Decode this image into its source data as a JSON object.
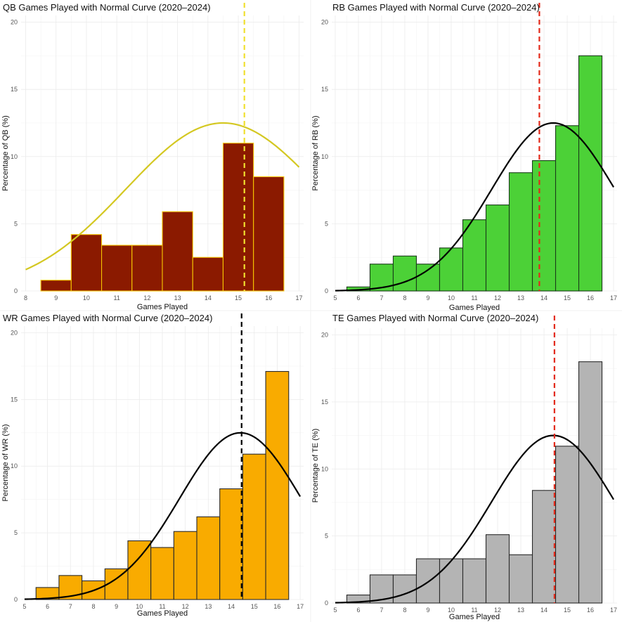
{
  "chart_data": [
    {
      "id": "qb",
      "type": "bar",
      "title": "QB Games Played with Normal Curve (2020–2024)",
      "xlabel": "Games Played",
      "ylabel": "Percentage of QB (%)",
      "x_ticks": [
        "8",
        "9",
        "10",
        "11",
        "12",
        "13",
        "14",
        "15",
        "16",
        "17"
      ],
      "y_ticks": [
        "0",
        "5",
        "10",
        "15",
        "20"
      ],
      "xlim": [
        7.85,
        17.15
      ],
      "ylim": [
        0,
        20.5
      ],
      "bins": [
        {
          "x": 9,
          "value": 0.8
        },
        {
          "x": 10,
          "value": 4.2
        },
        {
          "x": 11,
          "value": 3.4
        },
        {
          "x": 12,
          "value": 3.4
        },
        {
          "x": 13,
          "value": 5.9
        },
        {
          "x": 14,
          "value": 2.5
        },
        {
          "x": 15,
          "value": 11.0
        },
        {
          "x": 16,
          "value": 8.5
        }
      ],
      "normal_curve": {
        "mean": 14.5,
        "sd": 3.2,
        "peak": 12.5,
        "x_start": 8.0,
        "x_end": 17.0
      },
      "mean_line": 15.2,
      "colors": {
        "fill": "#8b1a00",
        "border": "#f5c400",
        "curve": "#d4c822",
        "mean_line": "#f0e030"
      }
    },
    {
      "id": "rb",
      "type": "bar",
      "title": "RB Games Played with Normal Curve (2020–2024)",
      "xlabel": "Games Played",
      "ylabel": "Percentage of RB (%)",
      "x_ticks": [
        "5",
        "6",
        "7",
        "8",
        "9",
        "10",
        "11",
        "12",
        "13",
        "14",
        "15",
        "16",
        "17"
      ],
      "y_ticks": [
        "0",
        "5",
        "10",
        "15",
        "20"
      ],
      "xlim": [
        4.85,
        17.15
      ],
      "ylim": [
        0,
        20.5
      ],
      "bins": [
        {
          "x": 6,
          "value": 0.3
        },
        {
          "x": 7,
          "value": 2.0
        },
        {
          "x": 8,
          "value": 2.6
        },
        {
          "x": 9,
          "value": 2.0
        },
        {
          "x": 10,
          "value": 3.2
        },
        {
          "x": 11,
          "value": 5.3
        },
        {
          "x": 12,
          "value": 6.4
        },
        {
          "x": 13,
          "value": 8.8
        },
        {
          "x": 14,
          "value": 9.7
        },
        {
          "x": 15,
          "value": 12.3
        },
        {
          "x": 16,
          "value": 17.5
        }
      ],
      "normal_curve": {
        "mean": 14.4,
        "sd": 2.65,
        "peak": 12.5,
        "x_start": 5.0,
        "x_end": 17.0
      },
      "mean_line": 13.8,
      "colors": {
        "fill": "#4cd137",
        "border": "#1a3d1a",
        "curve": "#000000",
        "mean_line": "#e32a1a"
      }
    },
    {
      "id": "wr",
      "type": "bar",
      "title": "WR Games Played with Normal Curve (2020–2024)",
      "xlabel": "Games Played",
      "ylabel": "Percentage of WR (%)",
      "x_ticks": [
        "5",
        "6",
        "7",
        "8",
        "9",
        "10",
        "11",
        "12",
        "13",
        "14",
        "15",
        "16",
        "17"
      ],
      "y_ticks": [
        "0",
        "5",
        "10",
        "15",
        "20"
      ],
      "xlim": [
        4.85,
        17.15
      ],
      "ylim": [
        0,
        20.5
      ],
      "bins": [
        {
          "x": 6,
          "value": 0.9
        },
        {
          "x": 7,
          "value": 1.8
        },
        {
          "x": 8,
          "value": 1.4
        },
        {
          "x": 9,
          "value": 2.3
        },
        {
          "x": 10,
          "value": 4.4
        },
        {
          "x": 11,
          "value": 3.9
        },
        {
          "x": 12,
          "value": 5.1
        },
        {
          "x": 13,
          "value": 6.2
        },
        {
          "x": 14,
          "value": 8.3
        },
        {
          "x": 15,
          "value": 10.9
        },
        {
          "x": 16,
          "value": 17.1
        }
      ],
      "normal_curve": {
        "mean": 14.4,
        "sd": 2.65,
        "peak": 12.5,
        "x_start": 5.0,
        "x_end": 17.0
      },
      "mean_line": 14.45,
      "colors": {
        "fill": "#f9ab00",
        "border": "#2a2a2a",
        "curve": "#000000",
        "mean_line": "#000000"
      }
    },
    {
      "id": "te",
      "type": "bar",
      "title": "TE Games Played with Normal Curve (2020–2024)",
      "xlabel": "Games Played",
      "ylabel": "Percentage of TE (%)",
      "x_ticks": [
        "5",
        "6",
        "7",
        "8",
        "9",
        "10",
        "11",
        "12",
        "13",
        "14",
        "15",
        "16",
        "17"
      ],
      "y_ticks": [
        "0",
        "5",
        "10",
        "15",
        "20"
      ],
      "xlim": [
        4.85,
        17.15
      ],
      "ylim": [
        0,
        20.5
      ],
      "bins": [
        {
          "x": 6,
          "value": 0.6
        },
        {
          "x": 7,
          "value": 2.1
        },
        {
          "x": 8,
          "value": 2.1
        },
        {
          "x": 9,
          "value": 3.3
        },
        {
          "x": 10,
          "value": 3.3
        },
        {
          "x": 11,
          "value": 3.3
        },
        {
          "x": 12,
          "value": 5.1
        },
        {
          "x": 13,
          "value": 3.6
        },
        {
          "x": 14,
          "value": 8.4
        },
        {
          "x": 15,
          "value": 11.7
        },
        {
          "x": 16,
          "value": 18.0
        }
      ],
      "normal_curve": {
        "mean": 14.4,
        "sd": 2.65,
        "peak": 12.5,
        "x_start": 5.0,
        "x_end": 17.0
      },
      "mean_line": 14.45,
      "colors": {
        "fill": "#b4b4b4",
        "border": "#2a2a2a",
        "curve": "#000000",
        "mean_line": "#e32a1a"
      }
    }
  ]
}
